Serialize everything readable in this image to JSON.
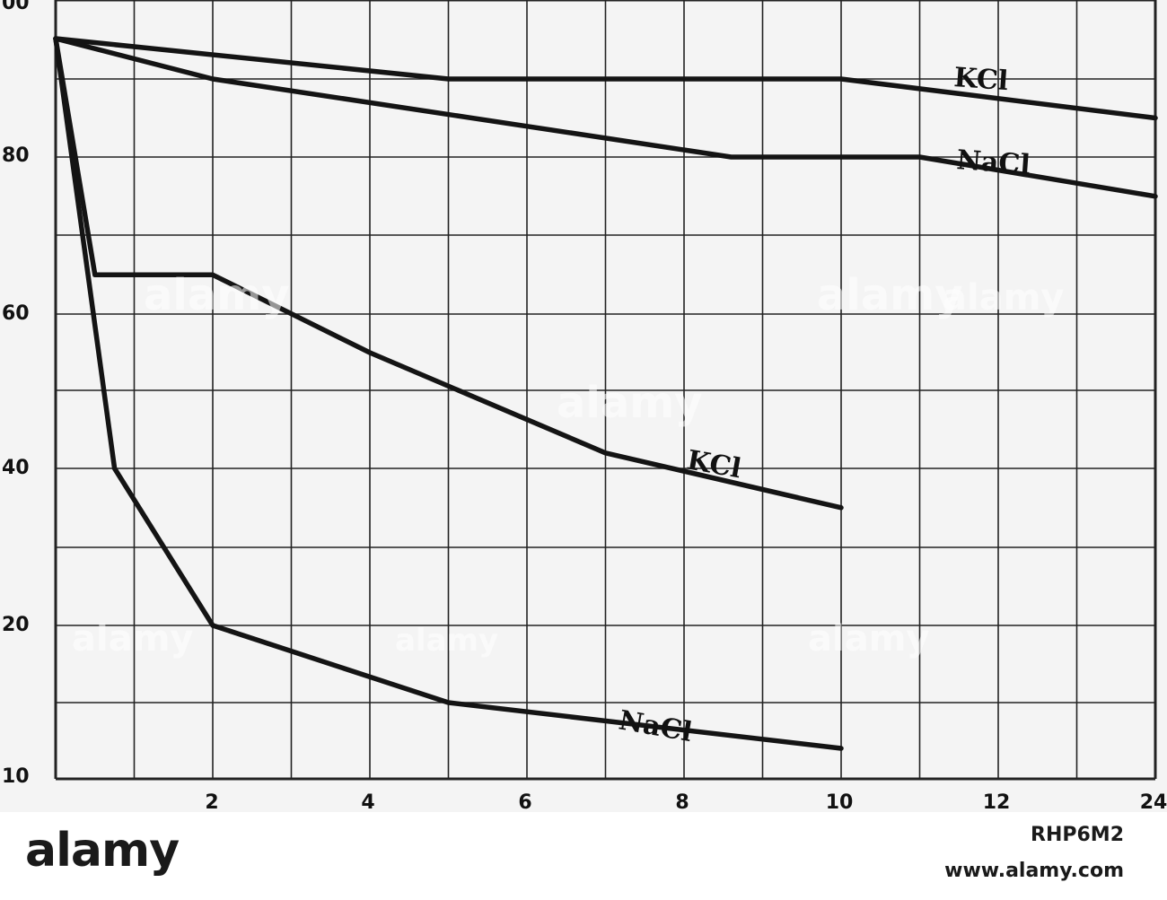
{
  "chart_data": {
    "type": "line",
    "title": "",
    "xlabel": "",
    "ylabel": "",
    "x_ticks": [
      "2",
      "4",
      "6",
      "8",
      "10",
      "12",
      "24"
    ],
    "y_ticks": [
      "10",
      "20",
      "40",
      "60",
      "80",
      "00"
    ],
    "grid": true,
    "series": [
      {
        "label": "KCl",
        "points": [
          [
            0,
            95
          ],
          [
            5,
            90
          ],
          [
            10,
            90
          ],
          [
            14,
            85
          ]
        ]
      },
      {
        "label": "NaCl",
        "points": [
          [
            0,
            95
          ],
          [
            2,
            90
          ],
          [
            8.6,
            80
          ],
          [
            11,
            80
          ],
          [
            14,
            75
          ]
        ]
      },
      {
        "label": "KCl",
        "points": [
          [
            0,
            95
          ],
          [
            0.5,
            65
          ],
          [
            2,
            65
          ],
          [
            4,
            55
          ],
          [
            7,
            42
          ],
          [
            10,
            35
          ]
        ]
      },
      {
        "label": "NaCl",
        "points": [
          [
            0,
            95
          ],
          [
            0.75,
            40
          ],
          [
            2,
            20
          ],
          [
            5,
            15
          ],
          [
            10,
            12
          ]
        ]
      }
    ]
  },
  "watermark": {
    "text": "alamy",
    "image_id": "RHP6M2",
    "url": "www.alamy.com"
  }
}
